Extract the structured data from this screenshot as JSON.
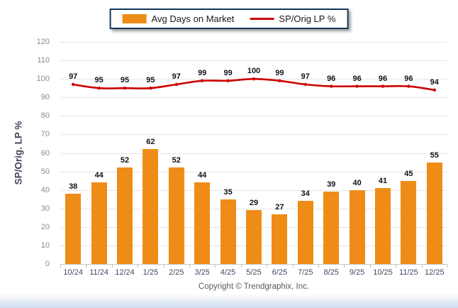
{
  "legend": {
    "bar_label": "Avg Days on Market",
    "line_label": "SP/Orig LP %"
  },
  "y_axis_title": "SP/Orig. LP %",
  "footer_text": "Copyright © Trendgraphix, Inc.",
  "colors": {
    "bar": "#EF8C17",
    "line": "#CC0000",
    "gridline": "#e5e5e5",
    "legend_border": "#17375E"
  },
  "chart_data": {
    "type": "combo",
    "categories": [
      "10/24",
      "11/24",
      "12/24",
      "1/25",
      "2/25",
      "3/25",
      "4/25",
      "5/25",
      "6/25",
      "7/25",
      "8/25",
      "9/25",
      "10/25",
      "11/25",
      "12/25"
    ],
    "series": [
      {
        "name": "Avg Days on Market",
        "type": "bar",
        "color": "#EF8C17",
        "values": [
          38,
          44,
          52,
          62,
          52,
          44,
          35,
          29,
          27,
          34,
          39,
          40,
          41,
          45,
          55
        ]
      },
      {
        "name": "SP/Orig LP %",
        "type": "line",
        "color": "#CC0000",
        "values": [
          97,
          95,
          95,
          95,
          97,
          99,
          99,
          100,
          99,
          97,
          96,
          96,
          96,
          96,
          94
        ]
      }
    ],
    "title": "",
    "xlabel": "",
    "ylabel": "SP/Orig. LP %",
    "ylim": [
      0,
      120
    ],
    "ytick_step": 10,
    "yticks": [
      0,
      10,
      20,
      30,
      40,
      50,
      60,
      70,
      80,
      90,
      100,
      110,
      120
    ],
    "grid": true,
    "legend_position": "top-center"
  }
}
